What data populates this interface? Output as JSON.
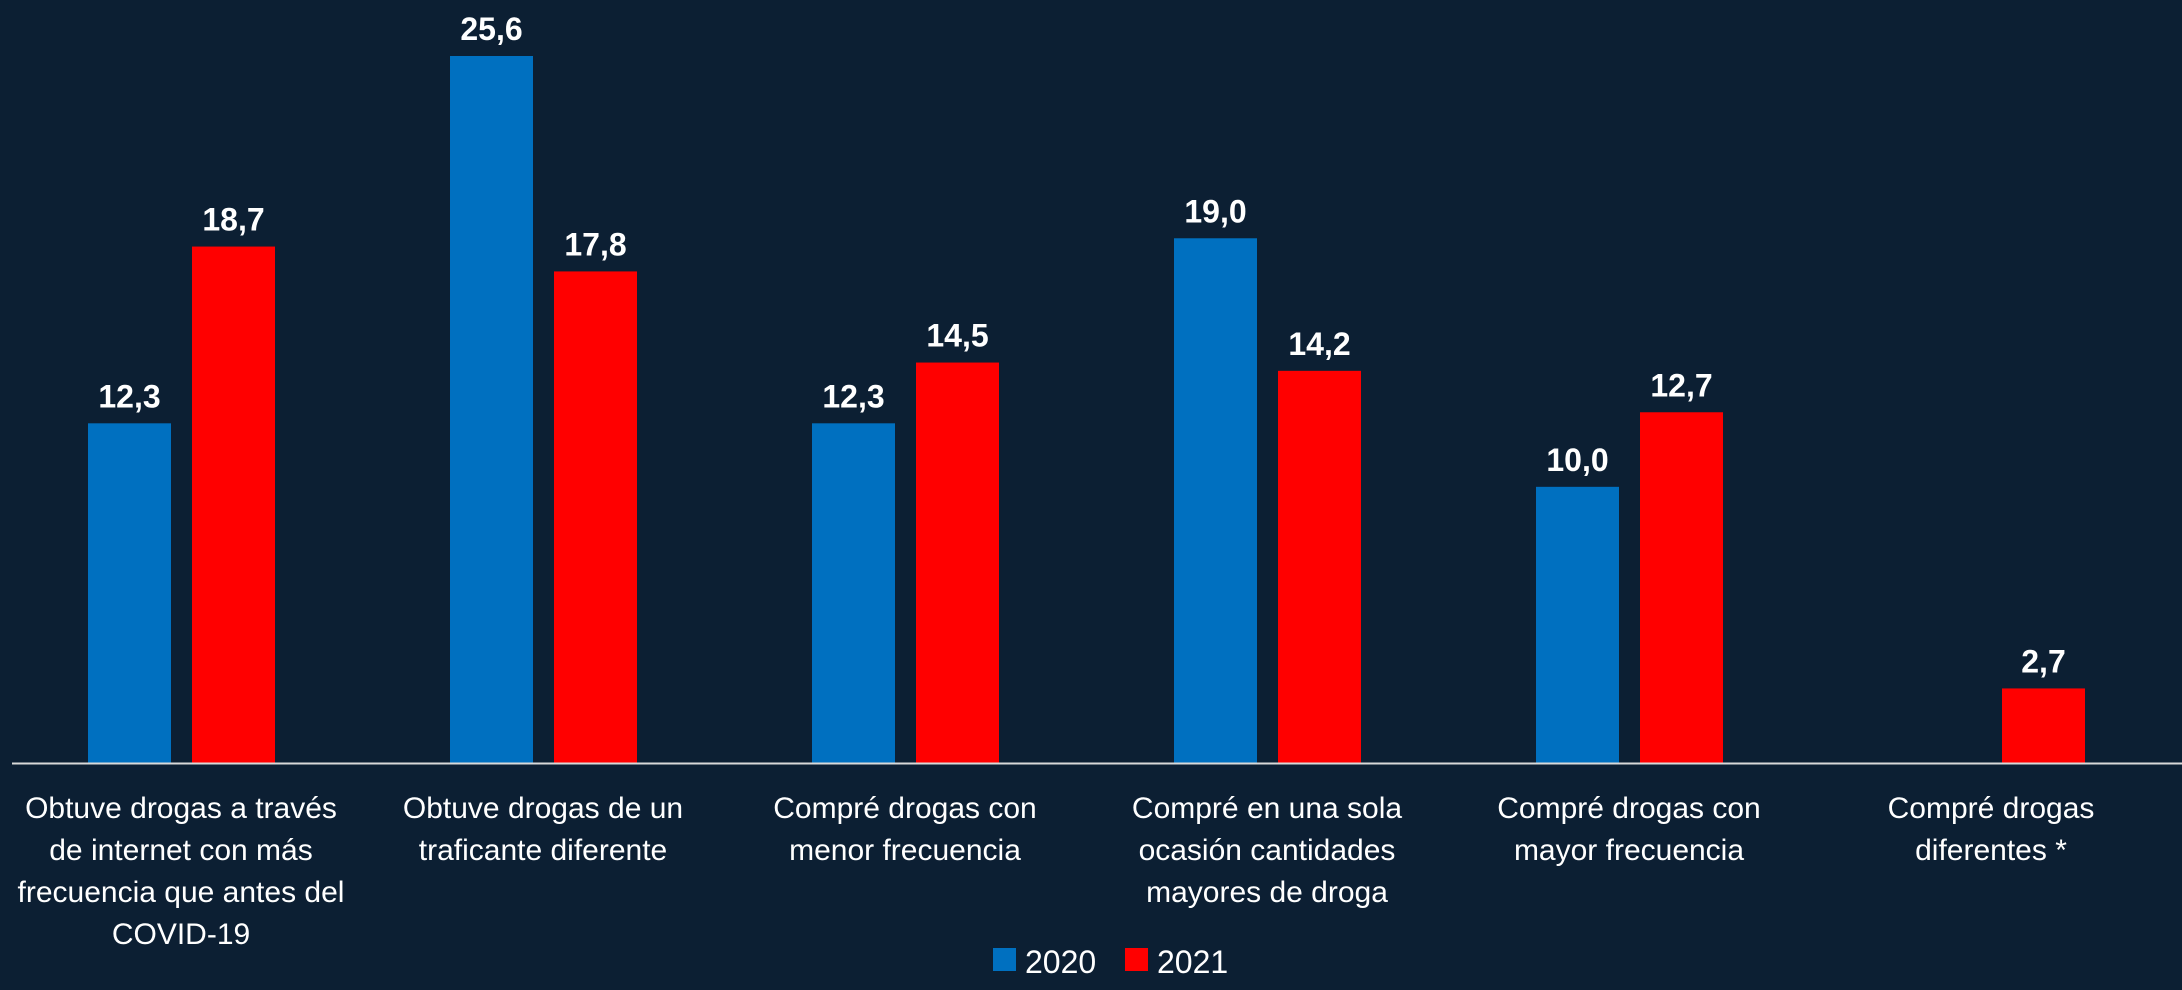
{
  "chart_data": {
    "type": "bar",
    "title": "",
    "xlabel": "",
    "ylabel": "",
    "ylim": [
      0,
      25.6
    ],
    "grid": false,
    "legend_position": "bottom-center",
    "categories": [
      [
        "Obtuve drogas a través",
        "de internet con más",
        "frecuencia que antes del",
        "COVID-19"
      ],
      [
        "Obtuve drogas de un",
        "traficante diferente"
      ],
      [
        "Compré drogas con",
        "menor frecuencia"
      ],
      [
        "Compré en una sola",
        "ocasión cantidades",
        "mayores de droga"
      ],
      [
        "Compré drogas con",
        "mayor frecuencia"
      ],
      [
        "Compré drogas",
        "diferentes *"
      ]
    ],
    "series": [
      {
        "name": "2020",
        "color": "#0070c0",
        "values": [
          12.3,
          25.6,
          12.3,
          19.0,
          10.0,
          null
        ],
        "labels": [
          "12,3",
          "25,6",
          "12,3",
          "19,0",
          "10,0",
          ""
        ]
      },
      {
        "name": "2021",
        "color": "#ff0000",
        "values": [
          18.7,
          17.8,
          14.5,
          14.2,
          12.7,
          2.7
        ],
        "labels": [
          "18,7",
          "17,8",
          "14,5",
          "14,2",
          "12,7",
          "2,7"
        ]
      }
    ],
    "baseline_color": "#d9d9d9"
  }
}
